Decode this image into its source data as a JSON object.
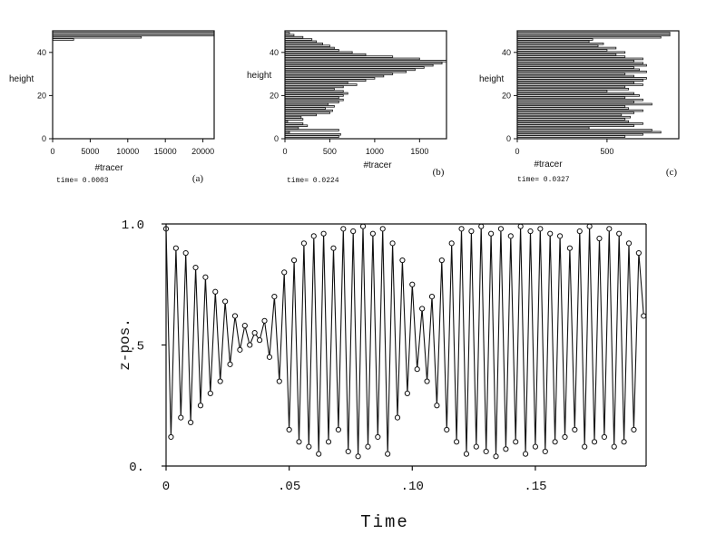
{
  "chart_data": [
    {
      "id": "a",
      "type": "bar",
      "orientation": "horizontal",
      "panel_label": "(a)",
      "time_label": "time= 0.0003",
      "xlabel": "#tracer",
      "ylabel": "height",
      "xlim": [
        0,
        21500
      ],
      "ylim": [
        0,
        50
      ],
      "xticks": [
        "0",
        "5000",
        "10000",
        "15000",
        "20000"
      ],
      "xtick_values": [
        0,
        5000,
        10000,
        15000,
        20000
      ],
      "yticks": [
        "0",
        "20",
        "40"
      ],
      "ytick_values": [
        0,
        20,
        40
      ],
      "bars": [
        {
          "height": 46,
          "value": 2800
        },
        {
          "height": 47,
          "value": 11800
        },
        {
          "height": 48,
          "value": 21500
        },
        {
          "height": 49,
          "value": 21500
        }
      ]
    },
    {
      "id": "b",
      "type": "bar",
      "orientation": "horizontal",
      "panel_label": "(b)",
      "time_label": "time= 0.0224",
      "xlabel": "#tracer",
      "ylabel": "height",
      "xlim": [
        0,
        1800
      ],
      "ylim": [
        0,
        50
      ],
      "xticks": [
        "0",
        "500",
        "1000",
        "1500"
      ],
      "xtick_values": [
        0,
        500,
        1000,
        1500
      ],
      "yticks": [
        "0",
        "20",
        "40"
      ],
      "ytick_values": [
        0,
        20,
        40
      ],
      "bars": [
        {
          "height": 1,
          "value": 600
        },
        {
          "height": 2,
          "value": 620
        },
        {
          "height": 3,
          "value": 50
        },
        {
          "height": 4,
          "value": 600
        },
        {
          "height": 5,
          "value": 150
        },
        {
          "height": 6,
          "value": 250
        },
        {
          "height": 7,
          "value": 200
        },
        {
          "height": 8,
          "value": 30
        },
        {
          "height": 9,
          "value": 200
        },
        {
          "height": 10,
          "value": 180
        },
        {
          "height": 11,
          "value": 350
        },
        {
          "height": 12,
          "value": 500
        },
        {
          "height": 13,
          "value": 530
        },
        {
          "height": 14,
          "value": 450
        },
        {
          "height": 15,
          "value": 550
        },
        {
          "height": 16,
          "value": 480
        },
        {
          "height": 17,
          "value": 600
        },
        {
          "height": 18,
          "value": 650
        },
        {
          "height": 19,
          "value": 600
        },
        {
          "height": 20,
          "value": 650
        },
        {
          "height": 21,
          "value": 700
        },
        {
          "height": 22,
          "value": 650
        },
        {
          "height": 23,
          "value": 550
        },
        {
          "height": 24,
          "value": 650
        },
        {
          "height": 25,
          "value": 800
        },
        {
          "height": 26,
          "value": 700
        },
        {
          "height": 27,
          "value": 900
        },
        {
          "height": 28,
          "value": 1000
        },
        {
          "height": 29,
          "value": 1100
        },
        {
          "height": 30,
          "value": 1200
        },
        {
          "height": 31,
          "value": 1350
        },
        {
          "height": 32,
          "value": 1450
        },
        {
          "height": 33,
          "value": 1550
        },
        {
          "height": 34,
          "value": 1650
        },
        {
          "height": 35,
          "value": 1750
        },
        {
          "height": 36,
          "value": 1800
        },
        {
          "height": 37,
          "value": 1500
        },
        {
          "height": 38,
          "value": 1200
        },
        {
          "height": 39,
          "value": 900
        },
        {
          "height": 40,
          "value": 750
        },
        {
          "height": 41,
          "value": 600
        },
        {
          "height": 42,
          "value": 550
        },
        {
          "height": 43,
          "value": 500
        },
        {
          "height": 44,
          "value": 420
        },
        {
          "height": 45,
          "value": 350
        },
        {
          "height": 46,
          "value": 300
        },
        {
          "height": 47,
          "value": 200
        },
        {
          "height": 48,
          "value": 100
        },
        {
          "height": 49,
          "value": 50
        }
      ]
    },
    {
      "id": "c",
      "type": "bar",
      "orientation": "horizontal",
      "panel_label": "(c)",
      "time_label": "time= 0.0327",
      "xlabel": "#tracer",
      "ylabel": "height",
      "xlim": [
        0,
        900
      ],
      "ylim": [
        0,
        50
      ],
      "xticks": [
        "0",
        "500"
      ],
      "xtick_values": [
        0,
        500
      ],
      "yticks": [
        "0",
        "20",
        "40"
      ],
      "ytick_values": [
        0,
        20,
        40
      ],
      "bars": [
        {
          "height": 1,
          "value": 600
        },
        {
          "height": 2,
          "value": 700
        },
        {
          "height": 3,
          "value": 800
        },
        {
          "height": 4,
          "value": 750
        },
        {
          "height": 5,
          "value": 400
        },
        {
          "height": 6,
          "value": 650
        },
        {
          "height": 7,
          "value": 700
        },
        {
          "height": 8,
          "value": 620
        },
        {
          "height": 9,
          "value": 600
        },
        {
          "height": 10,
          "value": 630
        },
        {
          "height": 11,
          "value": 580
        },
        {
          "height": 12,
          "value": 650
        },
        {
          "height": 13,
          "value": 700
        },
        {
          "height": 14,
          "value": 620
        },
        {
          "height": 15,
          "value": 600
        },
        {
          "height": 16,
          "value": 750
        },
        {
          "height": 17,
          "value": 650
        },
        {
          "height": 18,
          "value": 700
        },
        {
          "height": 19,
          "value": 600
        },
        {
          "height": 20,
          "value": 680
        },
        {
          "height": 21,
          "value": 650
        },
        {
          "height": 22,
          "value": 500
        },
        {
          "height": 23,
          "value": 620
        },
        {
          "height": 24,
          "value": 600
        },
        {
          "height": 25,
          "value": 700
        },
        {
          "height": 26,
          "value": 650
        },
        {
          "height": 27,
          "value": 700
        },
        {
          "height": 28,
          "value": 720
        },
        {
          "height": 29,
          "value": 650
        },
        {
          "height": 30,
          "value": 600
        },
        {
          "height": 31,
          "value": 720
        },
        {
          "height": 32,
          "value": 680
        },
        {
          "height": 33,
          "value": 650
        },
        {
          "height": 34,
          "value": 720
        },
        {
          "height": 35,
          "value": 700
        },
        {
          "height": 36,
          "value": 650
        },
        {
          "height": 37,
          "value": 700
        },
        {
          "height": 38,
          "value": 600
        },
        {
          "height": 39,
          "value": 550
        },
        {
          "height": 40,
          "value": 600
        },
        {
          "height": 41,
          "value": 500
        },
        {
          "height": 42,
          "value": 550
        },
        {
          "height": 43,
          "value": 450
        },
        {
          "height": 44,
          "value": 480
        },
        {
          "height": 45,
          "value": 400
        },
        {
          "height": 46,
          "value": 420
        },
        {
          "height": 47,
          "value": 800
        },
        {
          "height": 48,
          "value": 850
        },
        {
          "height": 49,
          "value": 850
        }
      ]
    },
    {
      "id": "zpos",
      "type": "line",
      "xlabel": "Time",
      "ylabel": "z-pos.",
      "xlim": [
        0,
        0.195
      ],
      "ylim": [
        0,
        1.0
      ],
      "xticks": [
        "0",
        ".05",
        ".10",
        ".15"
      ],
      "xtick_values": [
        0,
        0.05,
        0.1,
        0.15
      ],
      "yticks": [
        "0.",
        ".5",
        "1.0"
      ],
      "ytick_values": [
        0,
        0.5,
        1.0
      ],
      "markers": "open-circle",
      "series": [
        {
          "x": [
            0.0,
            0.002,
            0.004,
            0.006,
            0.008,
            0.01,
            0.012,
            0.014,
            0.016,
            0.018,
            0.02,
            0.022,
            0.024,
            0.026,
            0.028,
            0.03,
            0.032,
            0.034,
            0.036,
            0.038,
            0.04,
            0.042,
            0.044,
            0.046,
            0.048,
            0.05,
            0.052,
            0.054,
            0.056,
            0.058,
            0.06,
            0.062,
            0.064,
            0.066,
            0.068,
            0.07,
            0.072,
            0.074,
            0.076,
            0.078,
            0.08,
            0.082,
            0.084,
            0.086,
            0.088,
            0.09,
            0.092,
            0.094,
            0.096,
            0.098,
            0.1,
            0.102,
            0.104,
            0.106,
            0.108,
            0.11,
            0.112,
            0.114,
            0.116,
            0.118,
            0.12,
            0.122,
            0.124,
            0.126,
            0.128,
            0.13,
            0.132,
            0.134,
            0.136,
            0.138,
            0.14,
            0.142,
            0.144,
            0.146,
            0.148,
            0.15,
            0.152,
            0.154,
            0.156,
            0.158,
            0.16,
            0.162,
            0.164,
            0.166,
            0.168,
            0.17,
            0.172,
            0.174,
            0.176,
            0.178,
            0.18,
            0.182,
            0.184,
            0.186,
            0.188,
            0.19,
            0.192,
            0.194
          ],
          "y": [
            0.98,
            0.12,
            0.9,
            0.2,
            0.88,
            0.18,
            0.82,
            0.25,
            0.78,
            0.3,
            0.72,
            0.35,
            0.68,
            0.42,
            0.62,
            0.48,
            0.58,
            0.5,
            0.55,
            0.52,
            0.6,
            0.45,
            0.7,
            0.35,
            0.8,
            0.15,
            0.85,
            0.1,
            0.92,
            0.08,
            0.95,
            0.05,
            0.96,
            0.1,
            0.9,
            0.15,
            0.98,
            0.06,
            0.97,
            0.04,
            0.99,
            0.08,
            0.96,
            0.12,
            0.98,
            0.05,
            0.92,
            0.2,
            0.85,
            0.3,
            0.75,
            0.4,
            0.65,
            0.35,
            0.7,
            0.25,
            0.85,
            0.15,
            0.92,
            0.1,
            0.98,
            0.05,
            0.97,
            0.08,
            0.99,
            0.06,
            0.96,
            0.04,
            0.98,
            0.07,
            0.95,
            0.1,
            0.99,
            0.05,
            0.97,
            0.08,
            0.98,
            0.06,
            0.96,
            0.1,
            0.95,
            0.12,
            0.9,
            0.15,
            0.97,
            0.08,
            0.99,
            0.1,
            0.94,
            0.12,
            0.98,
            0.08,
            0.96,
            0.1,
            0.92,
            0.15,
            0.88,
            0.62
          ]
        }
      ]
    }
  ]
}
